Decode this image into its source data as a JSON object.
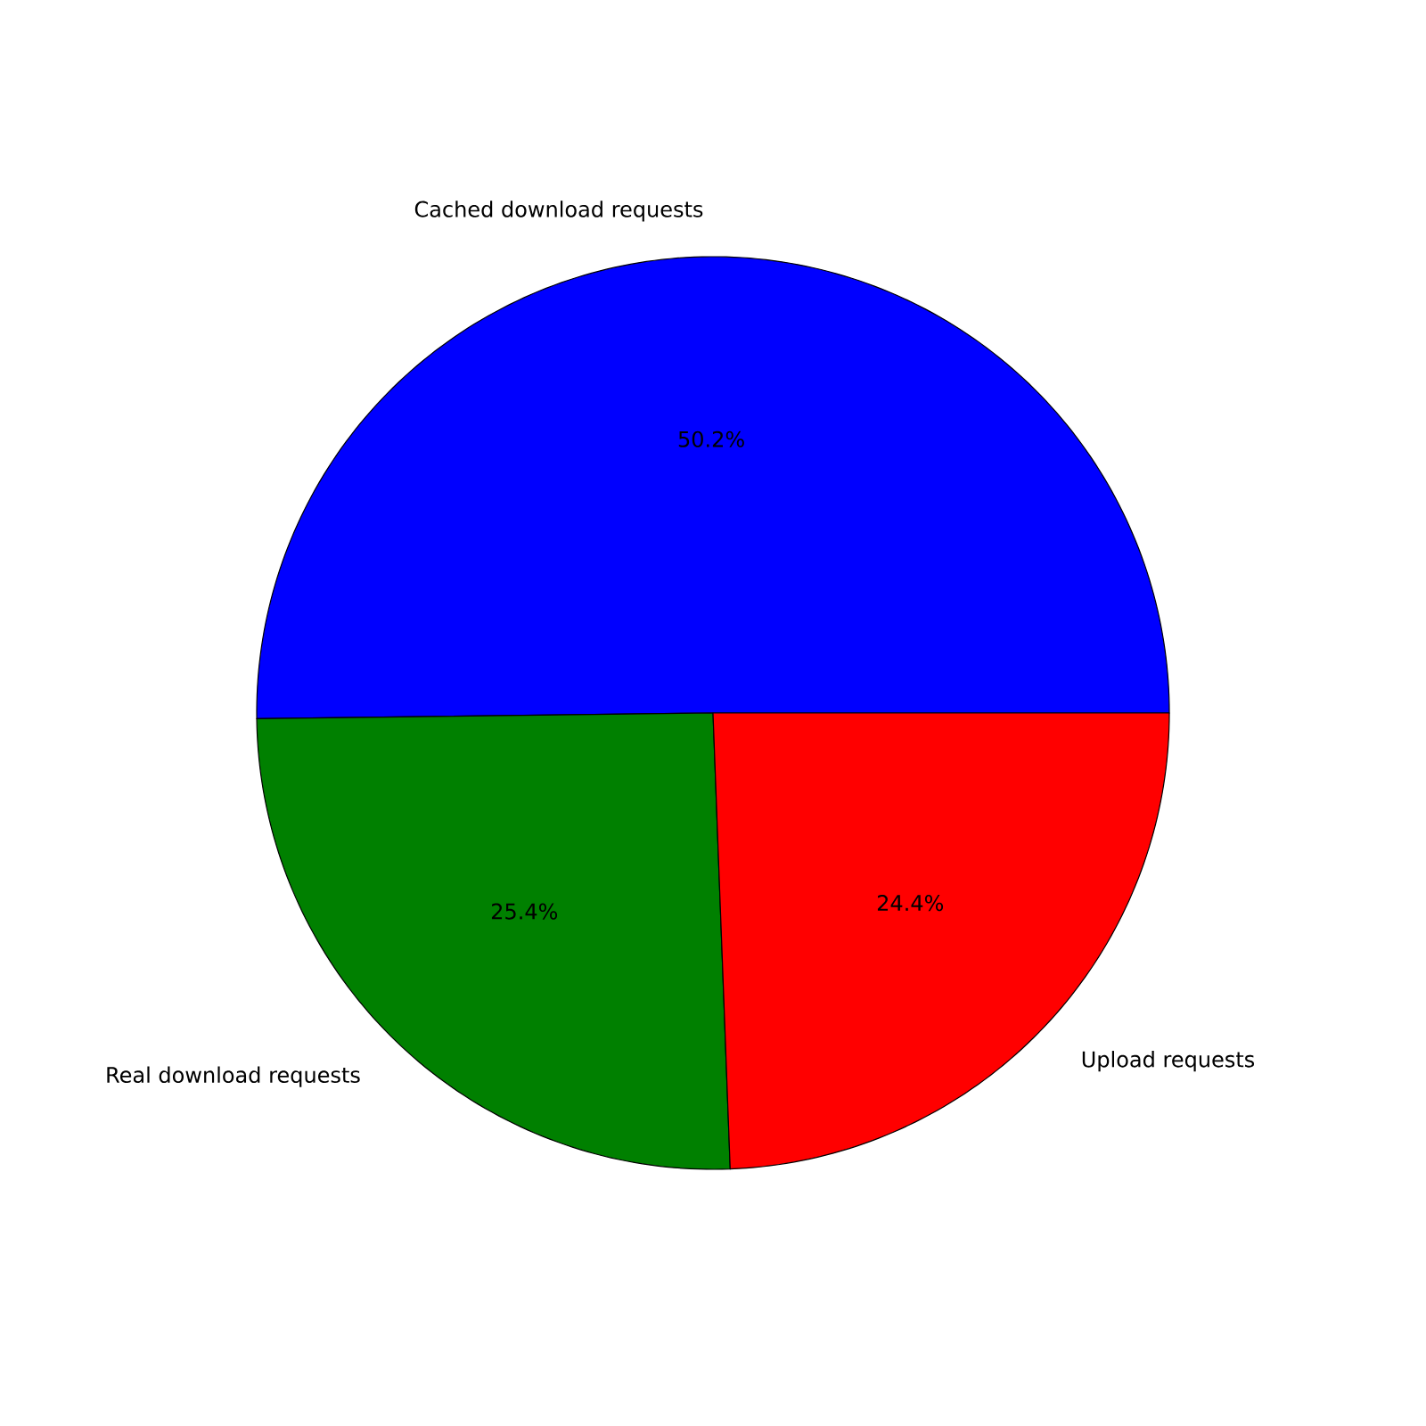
{
  "chart_data": {
    "type": "pie",
    "categories": [
      "Cached download requests",
      "Real download requests",
      "Upload requests"
    ],
    "values": [
      50.2,
      25.4,
      24.4
    ],
    "colors": [
      "#0000ff",
      "#008000",
      "#ff0000"
    ],
    "value_labels": [
      "50.2%",
      "25.4%",
      "24.4%"
    ]
  }
}
